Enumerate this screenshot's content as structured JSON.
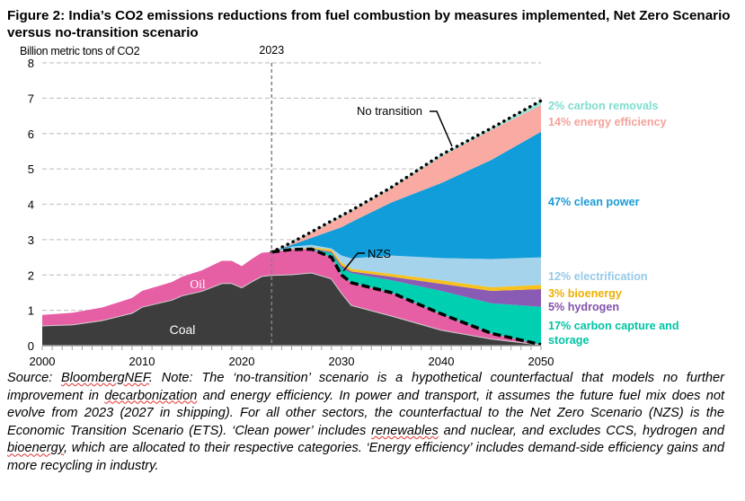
{
  "title": "Figure 2: India’s CO2 emissions reductions from fuel combustion by measures implemented, Net Zero Scenario versus no-transition scenario",
  "chart_data": {
    "type": "area",
    "stacked": true,
    "ylabel": "Billion metric tons of CO2",
    "ylim": [
      0,
      8
    ],
    "xlim": [
      2000,
      2050
    ],
    "yticks": [
      "0",
      "1",
      "2",
      "3",
      "4",
      "5",
      "6",
      "7",
      "8"
    ],
    "xticks": [
      "2000",
      "2010",
      "2020",
      "2030",
      "2040",
      "2050"
    ],
    "grid": "horizontal dashed",
    "marker_year": 2023,
    "marker_label": "2023",
    "x": [
      2000,
      2003,
      2006,
      2009,
      2010,
      2013,
      2014,
      2016,
      2018,
      2019,
      2020,
      2021,
      2022,
      2023,
      2025,
      2027,
      2029,
      2030,
      2031,
      2035,
      2040,
      2045,
      2050
    ],
    "series": [
      {
        "name": "Coal",
        "color": "#3d3d3d",
        "values": [
          0.57,
          0.6,
          0.72,
          0.93,
          1.1,
          1.3,
          1.42,
          1.55,
          1.77,
          1.77,
          1.65,
          1.82,
          1.97,
          2.0,
          2.02,
          2.07,
          1.9,
          1.5,
          1.15,
          0.85,
          0.45,
          0.2,
          0.03
        ]
      },
      {
        "name": "Oil",
        "color": "#e65fa5",
        "values": [
          0.3,
          0.33,
          0.36,
          0.42,
          0.45,
          0.5,
          0.53,
          0.58,
          0.63,
          0.63,
          0.6,
          0.63,
          0.66,
          0.65,
          0.7,
          0.66,
          0.6,
          0.5,
          0.63,
          0.65,
          0.45,
          0.15,
          0.0
        ]
      },
      {
        "name": "17% carbon capture and storage",
        "color": "#00cfb1",
        "label_color": "#00c4a4",
        "values": [
          0,
          0,
          0,
          0,
          0,
          0,
          0,
          0,
          0,
          0,
          0,
          0,
          0,
          0,
          0,
          0.01,
          0.12,
          0.2,
          0.27,
          0.35,
          0.65,
          0.85,
          1.07
        ]
      },
      {
        "name": "5% hydrogen",
        "color": "#8a5bb5",
        "label_color": "#8352ad",
        "values": [
          0,
          0,
          0,
          0,
          0,
          0,
          0,
          0,
          0,
          0,
          0,
          0,
          0,
          0,
          0,
          0.01,
          0.04,
          0.07,
          0.05,
          0.1,
          0.2,
          0.35,
          0.5
        ]
      },
      {
        "name": "3% bioenergy",
        "color": "#f7c21b",
        "label_color": "#eeb000",
        "values": [
          0,
          0,
          0,
          0,
          0,
          0,
          0,
          0,
          0,
          0,
          0,
          0,
          0,
          0,
          0.01,
          0.03,
          0.06,
          0.08,
          0.07,
          0.08,
          0.1,
          0.1,
          0.12
        ]
      },
      {
        "name": "12% electrification",
        "color": "#a6d3ec",
        "label_color": "#96cae8",
        "values": [
          0,
          0,
          0,
          0,
          0,
          0,
          0,
          0,
          0,
          0,
          0,
          0,
          0,
          0,
          0.07,
          0.07,
          0.03,
          0.2,
          0.3,
          0.52,
          0.63,
          0.8,
          0.78
        ]
      },
      {
        "name": "47% clean power",
        "color": "#109dd9",
        "label_color": "#1a9bd7",
        "values": [
          0,
          0,
          0,
          0,
          0,
          0,
          0,
          0,
          0,
          0,
          0,
          0,
          0,
          0,
          0.05,
          0.2,
          0.5,
          0.8,
          1.03,
          1.5,
          2.12,
          2.8,
          3.55
        ]
      },
      {
        "name": "14% energy efficiency",
        "color": "#f9aaa3",
        "label_color": "#f4a29b",
        "values": [
          0,
          0,
          0,
          0,
          0,
          0,
          0,
          0,
          0,
          0,
          0,
          0,
          0,
          0,
          0.05,
          0.15,
          0.25,
          0.3,
          0.3,
          0.4,
          0.75,
          0.85,
          0.75
        ]
      },
      {
        "name": "2% carbon removals",
        "color": "#9be3d5",
        "label_color": "#7fded0",
        "values": [
          0,
          0,
          0,
          0,
          0,
          0,
          0,
          0,
          0,
          0,
          0,
          0,
          0,
          0,
          0.02,
          0.02,
          0.03,
          0.03,
          0.03,
          0.03,
          0.05,
          0.05,
          0.13
        ]
      }
    ],
    "annotations": {
      "coal": "Coal",
      "oil": "Oil",
      "no_transition": "No transition",
      "nzs": "NZS"
    },
    "right_labels": [
      "2% carbon removals",
      "14% energy efficiency",
      "47% clean power",
      "12% electrification",
      "3% bioenergy",
      "5% hydrogen",
      "17% carbon capture and",
      "storage"
    ]
  },
  "source": {
    "p1": "Source: ",
    "link": "BloombergNEF",
    "p2": ". Note: The ‘no-transition’ scenario is a hypothetical counterfactual that models no further improvement in ",
    "w1": "decarbonization",
    "p3": " and energy efficiency. In power and transport, it assumes the future fuel mix does not evolve from 2023 (2027 in shipping). For all other sectors, the counterfactual to the Net Zero Scenario (NZS) is the Economic Transition Scenario (ETS). ‘Clean power’ includes ",
    "w2": "renewables",
    "p4": " and nuclear, and excludes CCS, hydrogen and ",
    "w3": "bioenergy",
    "p5": ", which are allocated to their respective categories. ‘Energy efficiency’ includes demand-side efficiency gains and more recycling in industry."
  }
}
